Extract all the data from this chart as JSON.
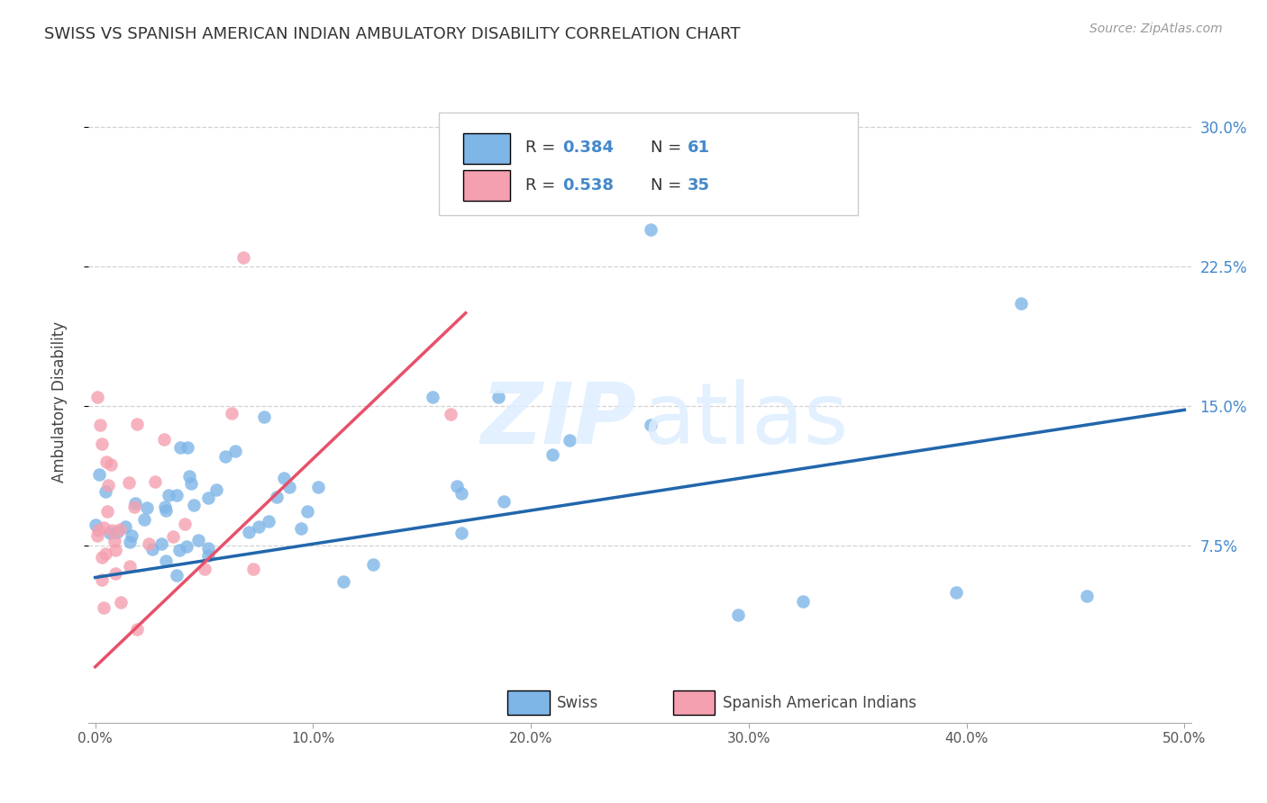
{
  "title": "SWISS VS SPANISH AMERICAN INDIAN AMBULATORY DISABILITY CORRELATION CHART",
  "source": "Source: ZipAtlas.com",
  "ylabel": "Ambulatory Disability",
  "xlim": [
    0.0,
    0.5
  ],
  "ylim": [
    -0.02,
    0.325
  ],
  "r_swiss": 0.384,
  "n_swiss": 61,
  "r_spanish": 0.538,
  "n_spanish": 35,
  "swiss_color": "#7EB6E8",
  "spanish_color": "#F4A0B0",
  "swiss_line_color": "#2166AC",
  "spanish_line_color": "#E8506A",
  "swiss_line_start_y": 0.058,
  "swiss_line_end_y": 0.148,
  "spanish_line_start_y": 0.01,
  "spanish_line_end_y": 0.2,
  "spanish_line_end_x": 0.17,
  "yticks": [
    0.075,
    0.15,
    0.225,
    0.3
  ],
  "ytick_labels": [
    "7.5%",
    "15.0%",
    "22.5%",
    "30.0%"
  ],
  "xticks": [
    0.0,
    0.1,
    0.2,
    0.3,
    0.4,
    0.5
  ],
  "xtick_labels": [
    "0.0%",
    "10.0%",
    "20.0%",
    "30.0%",
    "40.0%",
    "50.0%"
  ]
}
